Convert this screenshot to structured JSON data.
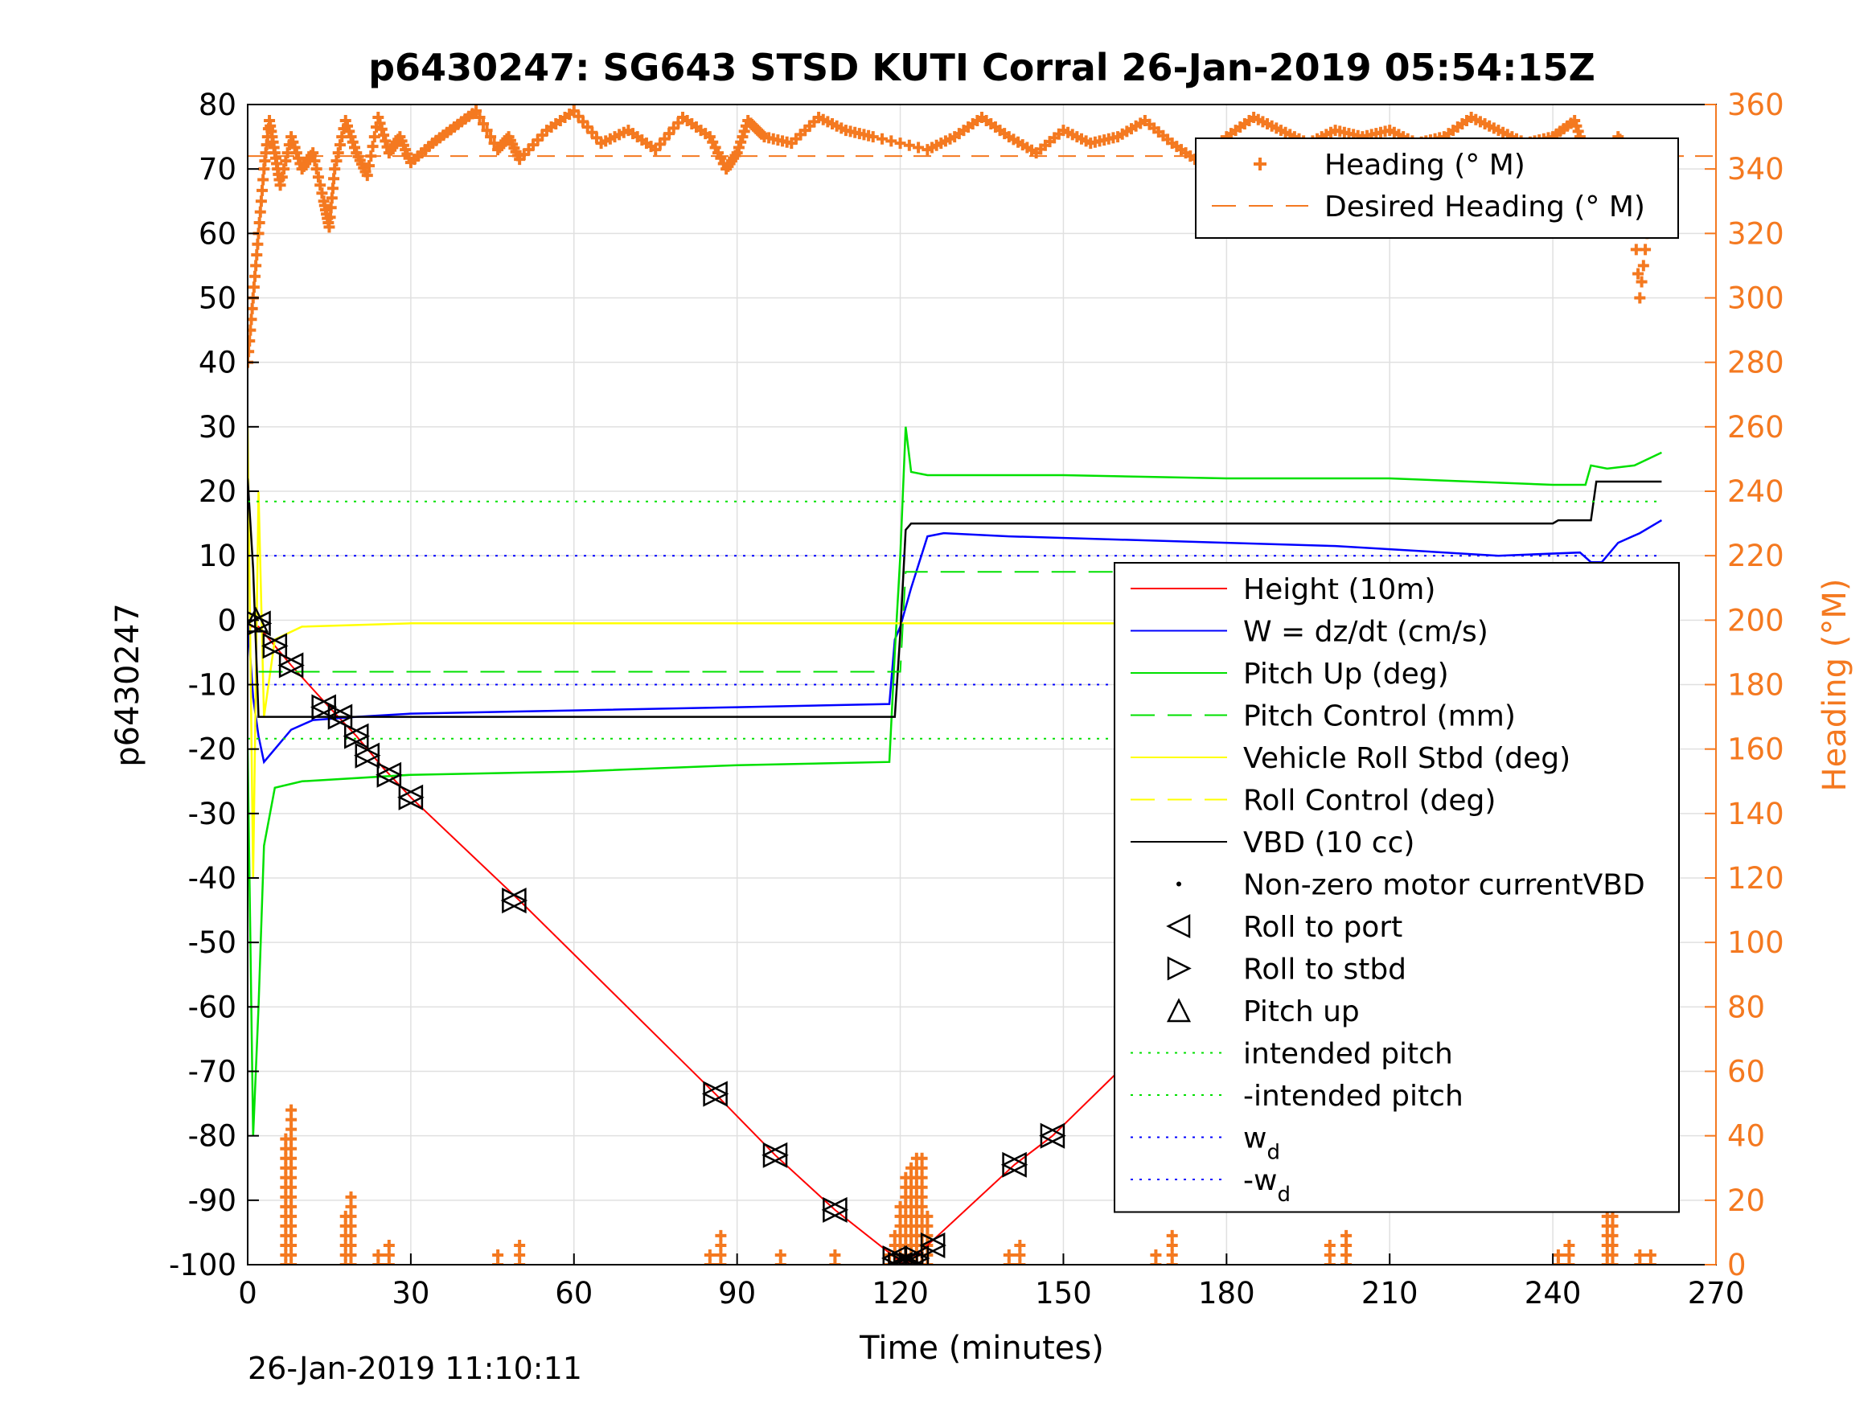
{
  "chart_data": {
    "type": "line",
    "title": "p6430247: SG643 STSD KUTI Corral 26-Jan-2019 05:54:15Z",
    "xlabel": "Time (minutes)",
    "ylabel": "p6430247",
    "ylabel_right": "Heading (°M)",
    "xlim": [
      0,
      270
    ],
    "ylim": [
      -100,
      80
    ],
    "ylim_right": [
      0,
      360
    ],
    "x_ticks": [
      "0",
      "30",
      "60",
      "90",
      "120",
      "150",
      "180",
      "210",
      "240",
      "270"
    ],
    "y_ticks": [
      "80",
      "70",
      "60",
      "50",
      "40",
      "30",
      "20",
      "10",
      "0",
      "-10",
      "-20",
      "-30",
      "-40",
      "-50",
      "-60",
      "-70",
      "-80",
      "-90",
      "-100"
    ],
    "y_ticks_right": [
      "360",
      "340",
      "320",
      "300",
      "280",
      "260",
      "240",
      "220",
      "200",
      "180",
      "160",
      "140",
      "120",
      "100",
      "80",
      "60",
      "40",
      "20",
      "0"
    ],
    "grid": true,
    "timestamp": "26-Jan-2019 11:10:11",
    "legend_top": [
      {
        "label": "Heading (° M)",
        "color": "#f47920",
        "style": "plus"
      },
      {
        "label": "Desired Heading (° M)",
        "color": "#f47920",
        "style": "dashed"
      }
    ],
    "legend_main": [
      {
        "label": "Height (10m)",
        "color": "#ff0000",
        "style": "solid"
      },
      {
        "label": "W = dz/dt (cm/s)",
        "color": "#0000ff",
        "style": "solid"
      },
      {
        "label": "Pitch Up (deg)",
        "color": "#00e000",
        "style": "solid"
      },
      {
        "label": "Pitch Control (mm)",
        "color": "#00e000",
        "style": "dashed"
      },
      {
        "label": "Vehicle Roll Stbd (deg)",
        "color": "#ffff00",
        "style": "solid"
      },
      {
        "label": "Roll Control (deg)",
        "color": "#ffff00",
        "style": "dashed"
      },
      {
        "label": "VBD (10 cc)",
        "color": "#000000",
        "style": "solid"
      },
      {
        "label": "Non-zero motor currentVBD",
        "color": "#000000",
        "style": "dot"
      },
      {
        "label": "Roll to port",
        "color": "#000000",
        "style": "tri-left"
      },
      {
        "label": "Roll to stbd",
        "color": "#000000",
        "style": "tri-right"
      },
      {
        "label": "Pitch up",
        "color": "#000000",
        "style": "tri-up"
      },
      {
        "label": "intended pitch",
        "color": "#00e000",
        "style": "dotted"
      },
      {
        "label": "-intended pitch",
        "color": "#00e000",
        "style": "dotted"
      },
      {
        "label": "w",
        "sub": "d",
        "color": "#0000ff",
        "style": "dotted"
      },
      {
        "label": "-w",
        "sub": "d",
        "color": "#0000ff",
        "style": "dotted"
      }
    ],
    "series": [
      {
        "name": "Height (10m)",
        "color": "#ff0000",
        "x": [
          0,
          2,
          5,
          8,
          15,
          20,
          25,
          30,
          50,
          86,
          97,
          108,
          120,
          121,
          125,
          141,
          148,
          168,
          180,
          192,
          202,
          213,
          243,
          250,
          258,
          260
        ],
        "y": [
          -1,
          -1,
          -4,
          -7,
          -13.5,
          -18,
          -23,
          -27.5,
          -43.5,
          -73.5,
          -83,
          -91.5,
          -99.5,
          -100,
          -97,
          -84.5,
          -80,
          -63.5,
          -55.5,
          -47.5,
          -39.5,
          -32,
          -13,
          -8,
          -2,
          0
        ]
      },
      {
        "name": "W = dz/dt (cm/s)",
        "color": "#0000ff",
        "x": [
          0,
          1,
          2,
          3,
          5,
          8,
          12,
          20,
          30,
          60,
          90,
          118,
          119,
          120,
          122,
          125,
          128,
          140,
          160,
          180,
          200,
          230,
          245,
          247,
          249,
          252,
          256,
          260
        ],
        "y": [
          0,
          -12,
          -18,
          -22,
          -20,
          -17,
          -15.5,
          -15,
          -14.5,
          -14,
          -13.5,
          -13,
          -3,
          -1,
          5,
          13,
          13.5,
          13,
          12.5,
          12,
          11.5,
          10,
          10.5,
          9,
          9,
          12,
          13.5,
          15.5
        ]
      },
      {
        "name": "Pitch Up (deg)",
        "color": "#00e000",
        "x": [
          0,
          1,
          2,
          3,
          5,
          10,
          30,
          60,
          90,
          118,
          119,
          120,
          121,
          122,
          125,
          150,
          180,
          210,
          240,
          246,
          247,
          250,
          255,
          260
        ],
        "y": [
          -20,
          -80,
          -60,
          -35,
          -26,
          -25,
          -24,
          -23.5,
          -22.5,
          -22,
          -5,
          10,
          30,
          23,
          22.5,
          22.5,
          22,
          22,
          21,
          21,
          24,
          23.5,
          24,
          26
        ]
      },
      {
        "name": "Vehicle Roll Stbd (deg)",
        "color": "#ffff00",
        "x": [
          0,
          1,
          2,
          3,
          5,
          10,
          30,
          60,
          90,
          120,
          150,
          180,
          210,
          240,
          250,
          255,
          260
        ],
        "y": [
          30,
          -40,
          20,
          -15,
          -3,
          -1,
          -0.5,
          -0.5,
          -0.5,
          -0.5,
          -0.5,
          -0.5,
          -0.5,
          -0.5,
          -0.5,
          -0.5,
          -0.5
        ]
      },
      {
        "name": "VBD (10 cc)",
        "color": "#000000",
        "x": [
          0,
          1,
          2,
          119,
          120,
          121,
          122,
          150,
          180,
          210,
          240,
          241,
          247,
          248,
          260
        ],
        "y": [
          22,
          8,
          -15,
          -15,
          -2,
          14,
          15,
          15,
          15,
          15,
          15,
          15.5,
          15.5,
          21.5,
          21.5
        ]
      },
      {
        "name": "Pitch Control (mm)",
        "color": "#00e000",
        "x": [
          2,
          120,
          121,
          260
        ],
        "y": [
          -8,
          -8,
          7.5,
          7.5
        ]
      },
      {
        "name": "intended pitch",
        "color": "#00e000",
        "x": [
          0,
          260
        ],
        "y": [
          18.4,
          18.4
        ]
      },
      {
        "name": "-intended pitch",
        "color": "#00e000",
        "x": [
          0,
          260
        ],
        "y": [
          -18.4,
          -18.4
        ]
      },
      {
        "name": "w_d",
        "color": "#0000ff",
        "x": [
          0,
          260
        ],
        "y": [
          10,
          10
        ]
      },
      {
        "name": "-w_d",
        "color": "#0000ff",
        "x": [
          0,
          260
        ],
        "y": [
          -10,
          -10
        ]
      }
    ],
    "roll_markers": {
      "x": [
        2,
        5,
        8,
        14,
        17,
        20,
        22,
        26,
        30,
        49,
        86,
        97,
        108,
        119,
        120,
        121,
        122,
        123,
        126,
        141,
        148,
        167,
        180,
        192,
        202,
        213,
        242,
        245,
        247,
        249,
        252,
        254,
        256,
        259
      ],
      "y": [
        -0.5,
        -4,
        -7,
        -13.5,
        -15,
        -18,
        -21,
        -24,
        -27.5,
        -43.5,
        -73.5,
        -83,
        -91.5,
        -99,
        -100,
        -100,
        -100,
        -99,
        -97,
        -84.5,
        -80,
        -64,
        -55.5,
        -47.5,
        -39.5,
        -32,
        -13,
        -11,
        -10.5,
        -9,
        -6,
        -4.5,
        -3,
        -0.5
      ]
    },
    "pitch_markers": {
      "x": [
        1.5,
        172
      ],
      "y": [
        0,
        -61
      ]
    },
    "heading": {
      "desired": 344,
      "plus_points_x": [
        0,
        1,
        2,
        3,
        4,
        5,
        6,
        8,
        10,
        12,
        14,
        15,
        16,
        18,
        20,
        22,
        24,
        26,
        28,
        30,
        34,
        38,
        42,
        46,
        48,
        50,
        55,
        60,
        65,
        70,
        75,
        80,
        85,
        88,
        90,
        92,
        95,
        100,
        105,
        110,
        115,
        125,
        130,
        135,
        140,
        145,
        150,
        155,
        160,
        165,
        170,
        175,
        180,
        185,
        190,
        195,
        200,
        205,
        210,
        215,
        220,
        225,
        230,
        235,
        240,
        244,
        246,
        248,
        250,
        252,
        254,
        256,
        258,
        260
      ],
      "plus_points_y": [
        280,
        300,
        320,
        340,
        355,
        345,
        335,
        350,
        340,
        345,
        330,
        322,
        340,
        355,
        345,
        338,
        356,
        345,
        350,
        342,
        348,
        353,
        358,
        346,
        350,
        343,
        352,
        358,
        348,
        352,
        346,
        356,
        350,
        340,
        345,
        355,
        350,
        348,
        356,
        352,
        350,
        346,
        350,
        356,
        350,
        345,
        352,
        348,
        350,
        355,
        348,
        342,
        350,
        356,
        352,
        348,
        352,
        350,
        352,
        348,
        350,
        356,
        352,
        348,
        350,
        355,
        345,
        332,
        340,
        350,
        345,
        300,
        330,
        340
      ],
      "low_points_x": [
        7,
        8,
        18,
        19,
        24,
        26,
        46,
        50,
        85,
        87,
        98,
        108,
        118,
        119,
        120,
        121,
        122,
        123,
        124,
        125,
        140,
        142,
        167,
        170,
        199,
        202,
        241,
        243,
        250,
        251,
        256,
        258
      ],
      "low_points_y": [
        40,
        50,
        15,
        22,
        5,
        8,
        3,
        6,
        5,
        10,
        5,
        4,
        3,
        10,
        20,
        28,
        32,
        34,
        33,
        15,
        4,
        7,
        5,
        9,
        6,
        9,
        5,
        7,
        15,
        18,
        4,
        5
      ]
    }
  }
}
